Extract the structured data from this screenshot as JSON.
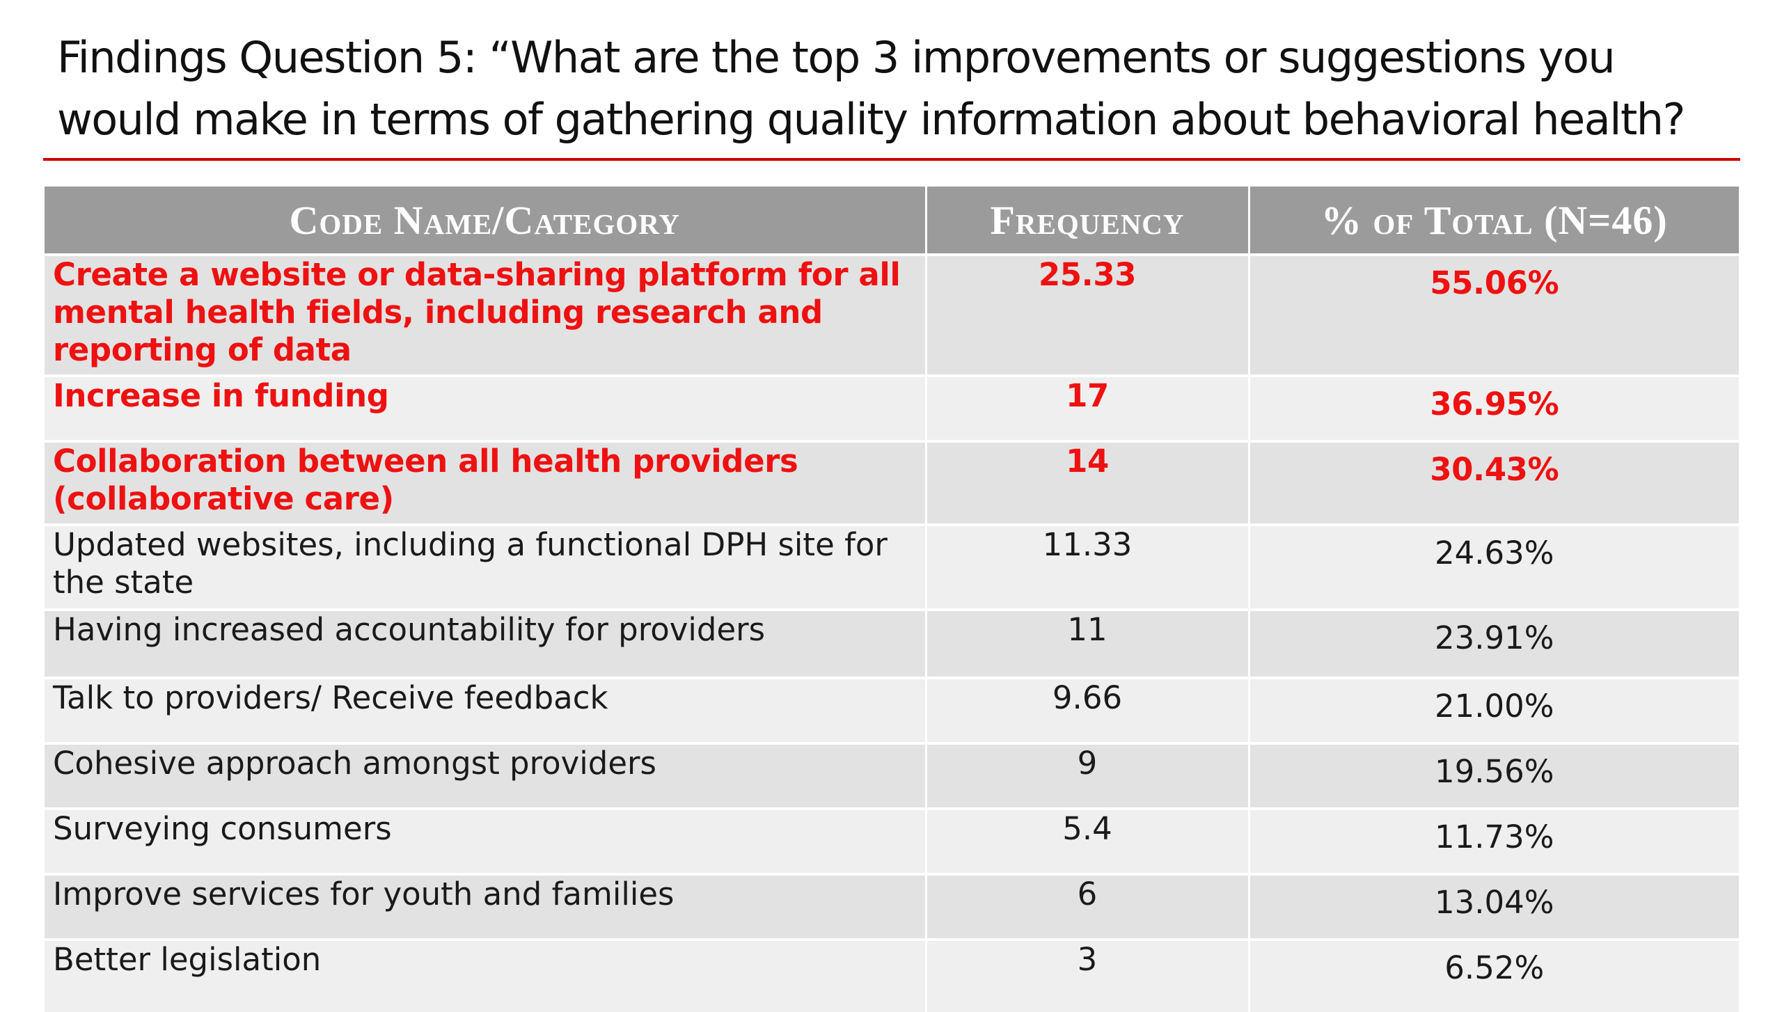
{
  "slide": {
    "title": "Findings Question 5: “What are the top 3 improvements or suggestions you would make in terms of gathering quality information about behavioral health?",
    "colors": {
      "accent_red": "#cc0000",
      "highlight_text": "#ee1111",
      "header_bg": "#9b9b9b",
      "row_bg_dark": "#e2e2e2",
      "row_bg_light": "#efefef"
    }
  },
  "table": {
    "headers": [
      "Code Name/Category",
      "Frequency",
      "% of Total (N=46)"
    ],
    "rows": [
      {
        "category": "Create a website or data-sharing platform for all mental health fields, including research and reporting of data",
        "frequency": "25.33",
        "percent": "55.06%",
        "highlight": true
      },
      {
        "category": "Increase in funding",
        "frequency": "17",
        "percent": "36.95%",
        "highlight": true
      },
      {
        "category": "Collaboration between all health providers (collaborative care)",
        "frequency": "14",
        "percent": "30.43%",
        "highlight": true
      },
      {
        "category": "Updated websites, including a functional DPH site for the state",
        "frequency": "11.33",
        "percent": "24.63%",
        "highlight": false
      },
      {
        "category": "Having increased accountability for providers",
        "frequency": "11",
        "percent": "23.91%",
        "highlight": false
      },
      {
        "category": "Talk to providers/ Receive feedback",
        "frequency": "9.66",
        "percent": "21.00%",
        "highlight": false
      },
      {
        "category": "Cohesive approach amongst providers",
        "frequency": "9",
        "percent": "19.56%",
        "highlight": false
      },
      {
        "category": "Surveying consumers",
        "frequency": "5.4",
        "percent": "11.73%",
        "highlight": false
      },
      {
        "category": "Improve services for youth and families",
        "frequency": "6",
        "percent": "13.04%",
        "highlight": false
      },
      {
        "category": "Better legislation",
        "frequency": "3",
        "percent": "6.52%",
        "highlight": false
      }
    ]
  }
}
